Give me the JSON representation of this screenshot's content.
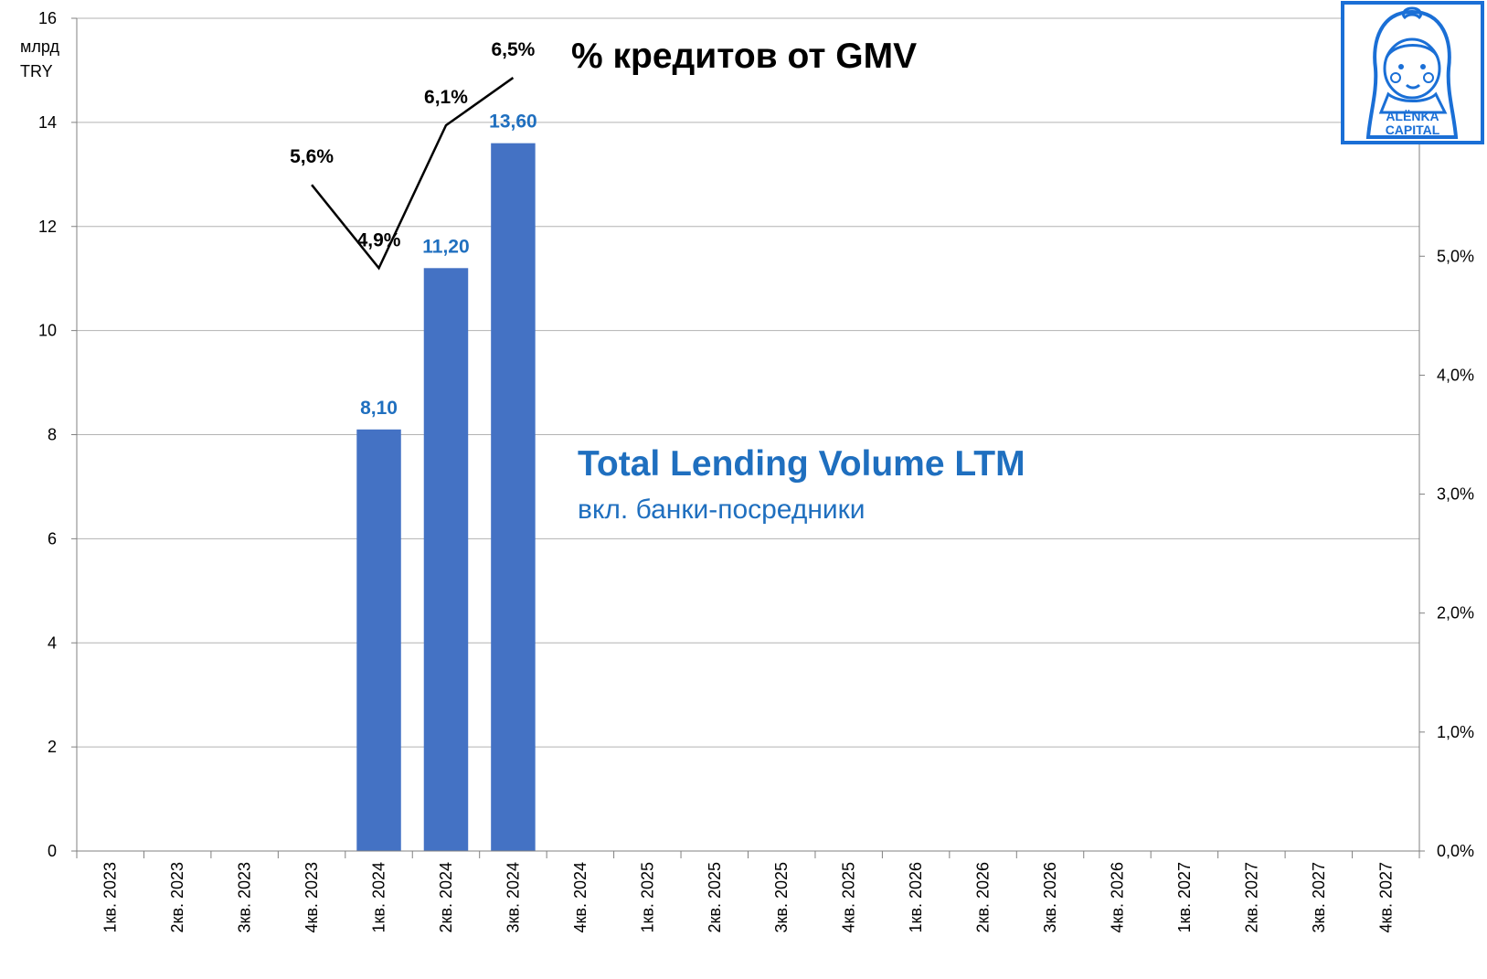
{
  "chart_data": {
    "type": "bar",
    "unit_label": [
      "млрд",
      "TRY"
    ],
    "categories": [
      "1кв. 2023",
      "2кв. 2023",
      "3кв. 2023",
      "4кв. 2023",
      "1кв. 2024",
      "2кв. 2024",
      "3кв. 2024",
      "4кв. 2024",
      "1кв. 2025",
      "2кв. 2025",
      "3кв. 2025",
      "4кв. 2025",
      "1кв. 2026",
      "2кв. 2026",
      "3кв. 2026",
      "4кв. 2026",
      "1кв. 2027",
      "2кв. 2027",
      "3кв. 2027",
      "4кв. 2027"
    ],
    "y_left": {
      "min": 0,
      "max": 16,
      "step": 2,
      "ticks": [
        "0",
        "2",
        "4",
        "6",
        "8",
        "10",
        "12",
        "14",
        "16"
      ]
    },
    "y_right": {
      "min": 0,
      "max": 0.07,
      "ticks": [
        "0,0%",
        "1,0%",
        "2,0%",
        "3,0%",
        "4,0%",
        "5,0%"
      ]
    },
    "grid": true,
    "series": [
      {
        "name": "Total Lending Volume LTM",
        "subtitle": "вкл. банки-посредники",
        "kind": "bar",
        "axis": "left",
        "color": "#4472c4",
        "label_color": "#1f6fbf",
        "values": [
          null,
          null,
          null,
          null,
          8.1,
          11.2,
          13.6,
          null,
          null,
          null,
          null,
          null,
          null,
          null,
          null,
          null,
          null,
          null,
          null,
          null
        ],
        "labels": [
          null,
          null,
          null,
          null,
          "8,10",
          "11,20",
          "13,60",
          null,
          null,
          null,
          null,
          null,
          null,
          null,
          null,
          null,
          null,
          null,
          null,
          null
        ]
      },
      {
        "name": "% кредитов от GMV",
        "kind": "line",
        "axis": "right",
        "color": "#000000",
        "values": [
          null,
          null,
          null,
          0.056,
          0.049,
          0.061,
          0.065,
          null,
          null,
          null,
          null,
          null,
          null,
          null,
          null,
          null,
          null,
          null,
          null,
          null
        ],
        "labels": [
          null,
          null,
          null,
          "5,6%",
          "4,9%",
          "6,1%",
          "6,5%",
          null,
          null,
          null,
          null,
          null,
          null,
          null,
          null,
          null,
          null,
          null,
          null,
          null
        ]
      }
    ]
  },
  "logo": {
    "name": "alenka-capital-logo",
    "text_line1": "ALЁNKA",
    "text_line2": "CAPITAL",
    "color": "#1a6fd6"
  }
}
